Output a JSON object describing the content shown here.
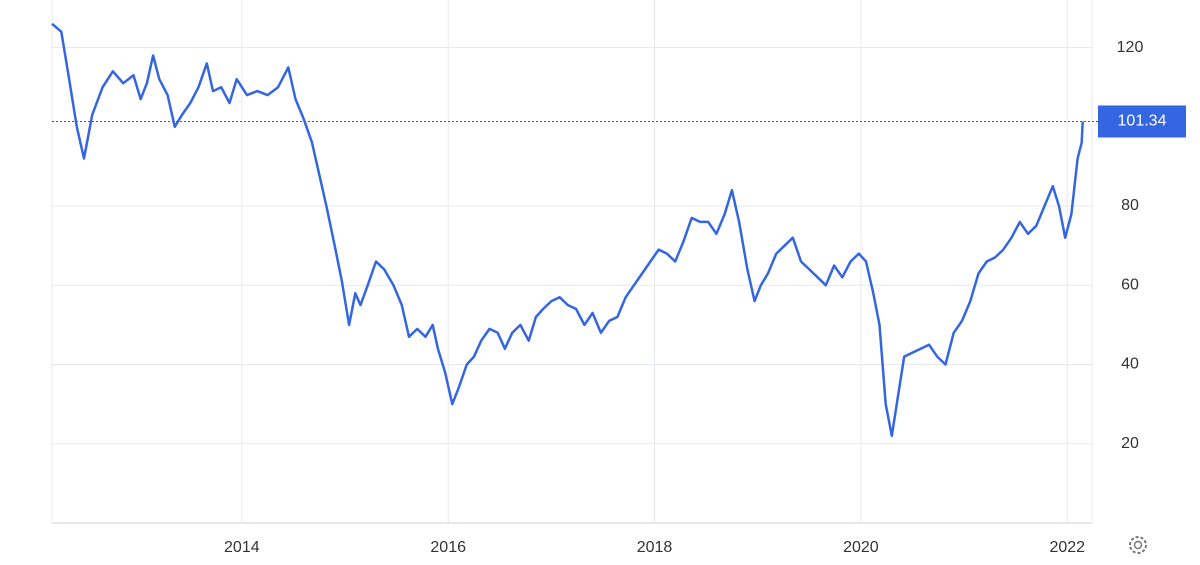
{
  "chart_data": {
    "type": "line",
    "x": [
      2012.16,
      2012.25,
      2012.32,
      2012.4,
      2012.47,
      2012.55,
      2012.65,
      2012.75,
      2012.85,
      2012.95,
      2013.02,
      2013.08,
      2013.14,
      2013.2,
      2013.28,
      2013.35,
      2013.42,
      2013.5,
      2013.58,
      2013.66,
      2013.72,
      2013.8,
      2013.88,
      2013.95,
      2014.05,
      2014.15,
      2014.25,
      2014.35,
      2014.45,
      2014.52,
      2014.6,
      2014.68,
      2014.75,
      2014.82,
      2014.9,
      2014.97,
      2015.04,
      2015.1,
      2015.15,
      2015.22,
      2015.3,
      2015.38,
      2015.47,
      2015.55,
      2015.62,
      2015.7,
      2015.78,
      2015.85,
      2015.9,
      2015.97,
      2016.04,
      2016.1,
      2016.18,
      2016.25,
      2016.32,
      2016.4,
      2016.48,
      2016.55,
      2016.62,
      2016.7,
      2016.78,
      2016.85,
      2016.92,
      2017.0,
      2017.08,
      2017.16,
      2017.24,
      2017.32,
      2017.4,
      2017.48,
      2017.56,
      2017.64,
      2017.72,
      2017.8,
      2017.88,
      2017.96,
      2018.04,
      2018.12,
      2018.2,
      2018.28,
      2018.36,
      2018.44,
      2018.52,
      2018.6,
      2018.68,
      2018.75,
      2018.82,
      2018.9,
      2018.97,
      2019.03,
      2019.1,
      2019.18,
      2019.26,
      2019.34,
      2019.42,
      2019.5,
      2019.58,
      2019.66,
      2019.74,
      2019.82,
      2019.9,
      2019.98,
      2020.05,
      2020.12,
      2020.18,
      2020.24,
      2020.3,
      2020.36,
      2020.42,
      2020.5,
      2020.58,
      2020.66,
      2020.74,
      2020.82,
      2020.9,
      2020.98,
      2021.06,
      2021.14,
      2021.22,
      2021.3,
      2021.38,
      2021.46,
      2021.54,
      2021.62,
      2021.7,
      2021.78,
      2021.86,
      2021.92,
      2021.98,
      2022.04,
      2022.1,
      2022.14,
      2022.15
    ],
    "values": [
      126,
      124,
      113,
      100,
      92,
      103,
      110,
      114,
      111,
      113,
      107,
      111,
      118,
      112,
      108,
      100,
      103,
      106,
      110,
      116,
      109,
      110,
      106,
      112,
      108,
      109,
      108,
      110,
      115,
      107,
      102,
      96,
      88,
      80,
      70,
      61,
      50,
      58,
      55,
      60,
      66,
      64,
      60,
      55,
      47,
      49,
      47,
      50,
      44,
      38,
      30,
      34,
      40,
      42,
      46,
      49,
      48,
      44,
      48,
      50,
      46,
      52,
      54,
      56,
      57,
      55,
      54,
      50,
      53,
      48,
      51,
      52,
      57,
      60,
      63,
      66,
      69,
      68,
      66,
      71,
      77,
      76,
      76,
      73,
      78,
      84,
      76,
      64,
      56,
      60,
      63,
      68,
      70,
      72,
      66,
      64,
      62,
      60,
      65,
      62,
      66,
      68,
      66,
      58,
      50,
      30,
      22,
      32,
      42,
      43,
      44,
      45,
      42,
      40,
      48,
      51,
      56,
      63,
      66,
      67,
      69,
      72,
      76,
      73,
      75,
      80,
      85,
      80,
      72,
      78,
      92,
      96,
      101.34
    ],
    "color": "#3366e0",
    "last_value": 101.34,
    "xlim": [
      2012.16,
      2022.24
    ],
    "xticks": [
      2014,
      2016,
      2018,
      2020,
      2022
    ],
    "ylim": [
      0,
      132
    ],
    "yticks": [
      20,
      40,
      60,
      80,
      120
    ],
    "grid": true
  }
}
